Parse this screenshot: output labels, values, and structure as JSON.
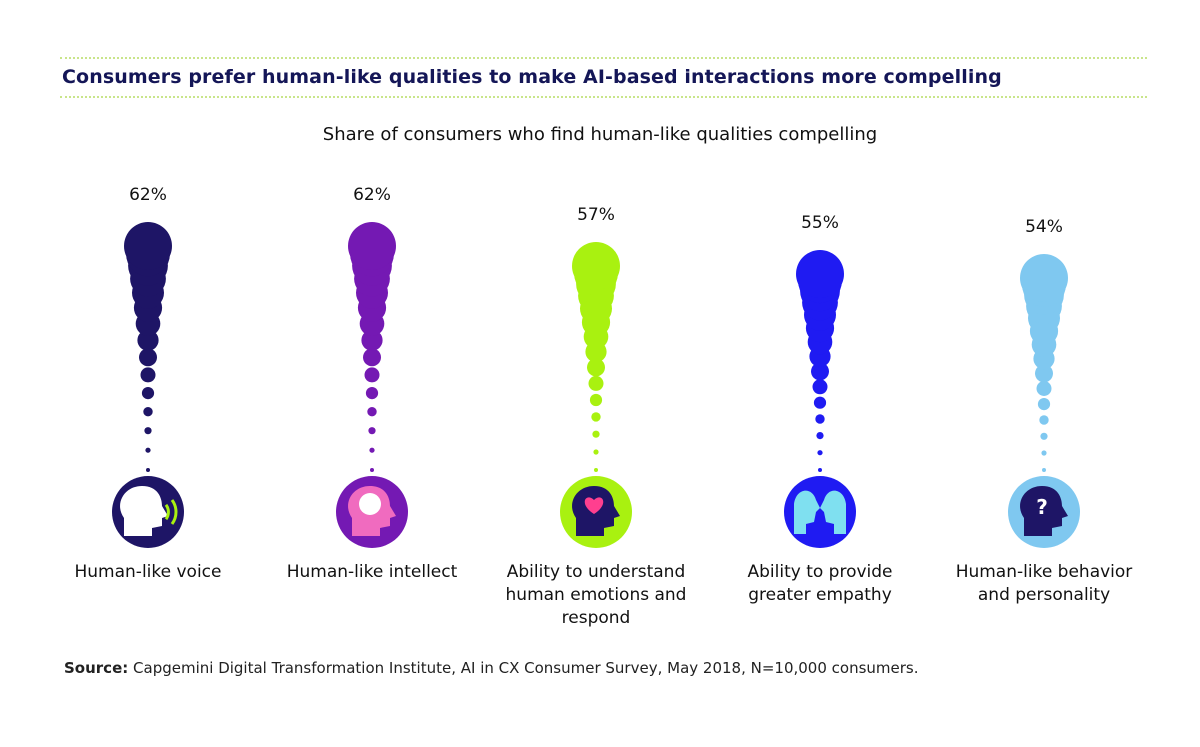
{
  "header": {
    "title": "Consumers prefer human-like qualities to make AI-based interactions more compelling"
  },
  "chart_data": {
    "type": "bar",
    "title": "Share of consumers who find human-like qualities compelling",
    "categories": [
      [
        "Human-like voice"
      ],
      [
        "Human-like intellect"
      ],
      [
        "Ability to understand",
        "human emotions and",
        "respond"
      ],
      [
        "Ability to provide",
        "greater empathy"
      ],
      [
        "Human-like behavior",
        "and personality"
      ]
    ],
    "values": [
      62,
      62,
      57,
      55,
      54
    ],
    "value_labels": [
      "62%",
      "62%",
      "57%",
      "55%",
      "54%"
    ],
    "colors": [
      "#1e1566",
      "#7419b3",
      "#a9f110",
      "#1f1bf2",
      "#7fc8f0"
    ],
    "icons": [
      "speaking-head-icon",
      "brain-head-icon",
      "heart-head-icon",
      "empathy-faces-icon",
      "question-head-icon"
    ],
    "unit": "%",
    "grid": false,
    "legend": "none"
  },
  "footer": {
    "source_label": "Source:",
    "source_text": "Capgemini Digital Transformation Institute, AI in CX Consumer Survey, May 2018, N=10,000 consumers."
  }
}
